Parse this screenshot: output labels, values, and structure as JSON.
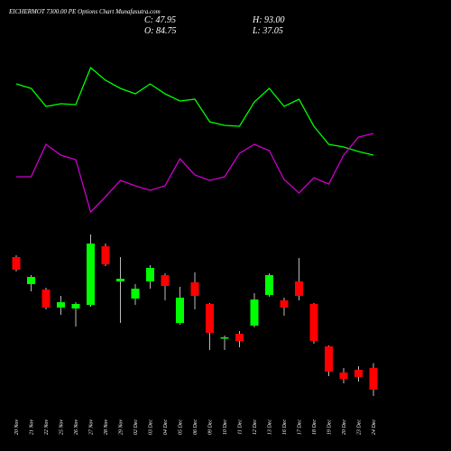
{
  "header": {
    "title": "EICHERMOT 7300.00 PE Options Chart Munafasutra.com",
    "close": "C: 47.95",
    "high": "H: 93.00",
    "open": "O: 84.75",
    "low": "L: 37.05"
  },
  "chart_data": [
    {
      "type": "line",
      "ylim": [
        0,
        300
      ],
      "series": [
        {
          "color": "#00ff00",
          "values": [
            207,
            202,
            182,
            185,
            184,
            225,
            211,
            202,
            196,
            207,
            196,
            188,
            190,
            165,
            161,
            160,
            187,
            202,
            182,
            190,
            160,
            140,
            137,
            132,
            128
          ]
        },
        {
          "color": "#cc00cc",
          "values": [
            104,
            104,
            140,
            128,
            123,
            65,
            82,
            100,
            94,
            89,
            94,
            124,
            106,
            100,
            104,
            130,
            140,
            133,
            101,
            86,
            103,
            96,
            128,
            148,
            152
          ]
        }
      ]
    },
    {
      "type": "candlestick",
      "ylim": [
        5,
        327
      ],
      "up_color": "#00ff00",
      "down_color": "#ff0000",
      "categories": [
        "20 Nov",
        "21 Nov",
        "22 Nov",
        "25 Nov",
        "26 Nov",
        "27 Nov",
        "28 Nov",
        "29 Nov",
        "02 Dec",
        "03 Dec",
        "04 Dec",
        "05 Dec",
        "06 Dec",
        "09 Dec",
        "10 Dec",
        "11 Dec",
        "12 Dec",
        "13 Dec",
        "16 Dec",
        "17 Dec",
        "18 Dec",
        "19 Dec",
        "20 Dec",
        "23 Dec",
        "24 Dec"
      ],
      "open": [
        273.3,
        227.3,
        218.1,
        187.5,
        186.0,
        192.1,
        291.7,
        232.0,
        202.8,
        232.0,
        242.6,
        161.4,
        230.4,
        193.6,
        135.3,
        143.0,
        156.8,
        208.9,
        199.7,
        232.0,
        193.6,
        121.5,
        77.1,
        81.7,
        84.75
      ],
      "close": [
        251.8,
        239.6,
        187.5,
        196.6,
        193.6,
        296.3,
        261.0,
        236.5,
        219.6,
        254.9,
        224.2,
        204.3,
        207.4,
        144.5,
        136.9,
        130.7,
        201.2,
        242.6,
        187.5,
        207.4,
        130.7,
        78.6,
        66.3,
        69.5,
        47.95
      ],
      "high": [
        276.4,
        242.6,
        221.2,
        207.4,
        196.6,
        311.6,
        296.3,
        273.3,
        227.3,
        259.5,
        245.7,
        222.7,
        247.2,
        195.1,
        139.9,
        147.6,
        212.0,
        245.7,
        204.3,
        271.8,
        195.1,
        123.1,
        84.75,
        87.8,
        93.0
      ],
      "low": [
        248.8,
        215.0,
        184.4,
        175.2,
        155.3,
        189.0,
        258.0,
        161.4,
        192.1,
        219.6,
        199.7,
        158.3,
        184.4,
        115.4,
        115.4,
        120.0,
        153.7,
        205.8,
        173.7,
        199.7,
        126.1,
        71.0,
        58.7,
        61.8,
        37.05
      ]
    }
  ]
}
